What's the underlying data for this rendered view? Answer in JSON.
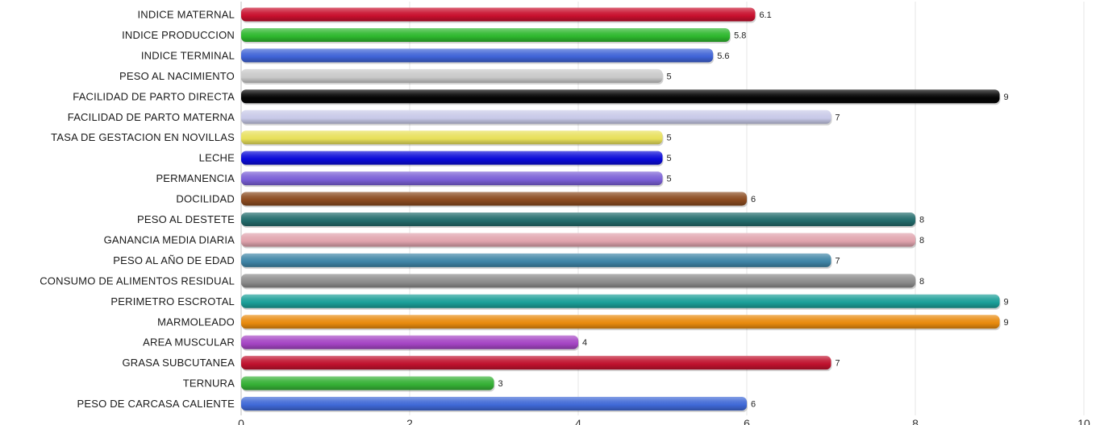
{
  "chart_data": {
    "type": "bar",
    "orientation": "horizontal",
    "title": "",
    "xlabel": "",
    "ylabel": "",
    "xlim": [
      0,
      10
    ],
    "x_ticks": [
      "0",
      "2",
      "4",
      "6",
      "8",
      "10"
    ],
    "grid": true,
    "categories": [
      "INDICE MATERNAL",
      "INDICE PRODUCCION",
      "INDICE TERMINAL",
      "PESO AL NACIMIENTO",
      "FACILIDAD DE PARTO DIRECTA",
      "FACILIDAD DE PARTO MATERNA",
      "TASA DE GESTACION EN NOVILLAS",
      "LECHE",
      "PERMANENCIA",
      "DOCILIDAD",
      "PESO AL DESTETE",
      "GANANCIA MEDIA DIARIA",
      "PESO AL AÑO DE EDAD",
      "CONSUMO DE ALIMENTOS RESIDUAL",
      "PERIMETRO ESCROTAL",
      "MARMOLEADO",
      "AREA MUSCULAR",
      "GRASA SUBCUTANEA",
      "TERNURA",
      "PESO DE CARCASA CALIENTE"
    ],
    "values": [
      6.1,
      5.8,
      5.6,
      5,
      9,
      7,
      5,
      5,
      5,
      6,
      8,
      8,
      7,
      8,
      9,
      9,
      4,
      7,
      3,
      6
    ],
    "value_labels": [
      "6.1",
      "5.8",
      "5.6",
      "5",
      "9",
      "7",
      "5",
      "5",
      "5",
      "6",
      "8",
      "8",
      "7",
      "8",
      "9",
      "9",
      "4",
      "7",
      "3",
      "6"
    ],
    "colors": [
      "#c8102e",
      "#2eb82e",
      "#3f63d6",
      "#c9c9c9",
      "#050505",
      "#c7c9e8",
      "#e8e05a",
      "#0a0ad8",
      "#7a5fd6",
      "#8a4a1f",
      "#226b6b",
      "#e0a3ad",
      "#3f85a6",
      "#8c8c8c",
      "#1a9e98",
      "#e88a0e",
      "#a545c4",
      "#c0122e",
      "#35b035",
      "#3f68d6"
    ]
  }
}
